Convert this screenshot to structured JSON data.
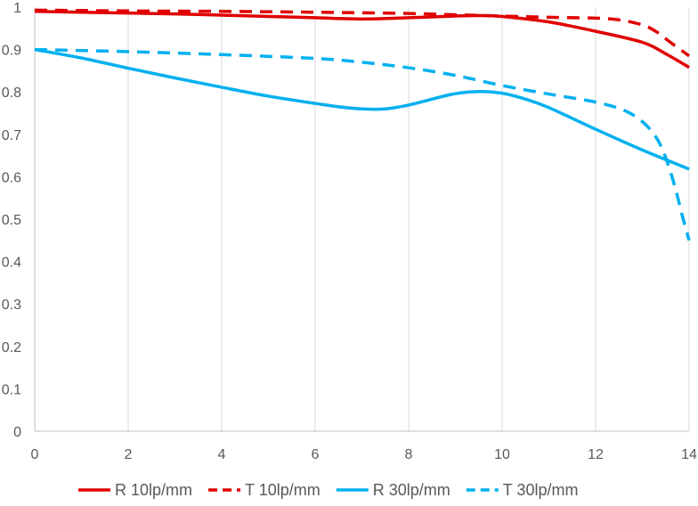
{
  "chart_data": {
    "type": "line",
    "title": "",
    "xlabel": "",
    "ylabel": "",
    "xlim": [
      0,
      14
    ],
    "ylim": [
      0,
      1
    ],
    "x_ticks": [
      0,
      2,
      4,
      6,
      8,
      10,
      12,
      14
    ],
    "y_ticks": [
      0,
      0.1,
      0.2,
      0.3,
      0.4,
      0.5,
      0.6,
      0.7,
      0.8,
      0.9,
      1
    ],
    "x_tick_labels": [
      "0",
      "2",
      "4",
      "6",
      "8",
      "10",
      "12",
      "14"
    ],
    "y_tick_labels": [
      "0",
      "0.1",
      "0.2",
      "0.3",
      "0.4",
      "0.5",
      "0.6",
      "0.7",
      "0.8",
      "0.9",
      "1"
    ],
    "grid": "vertical",
    "legend_position": "bottom",
    "series": [
      {
        "name": "R 10lp/mm",
        "color": "#e00000",
        "dash": "solid",
        "x": [
          0,
          1,
          2,
          3,
          4,
          5,
          6,
          7,
          8,
          9,
          9.5,
          10,
          11,
          12,
          13,
          13.5,
          14
        ],
        "y": [
          0.99,
          0.988,
          0.986,
          0.984,
          0.981,
          0.978,
          0.975,
          0.972,
          0.975,
          0.979,
          0.98,
          0.978,
          0.965,
          0.943,
          0.917,
          0.89,
          0.858
        ]
      },
      {
        "name": "T 10lp/mm",
        "color": "#e00000",
        "dash": "dashed",
        "x": [
          0,
          2,
          4,
          6,
          8,
          9,
          10,
          11,
          12,
          12.5,
          13,
          13.3,
          13.6,
          14
        ],
        "y": [
          0.993,
          0.991,
          0.99,
          0.988,
          0.985,
          0.982,
          0.979,
          0.976,
          0.974,
          0.97,
          0.958,
          0.942,
          0.917,
          0.885
        ]
      },
      {
        "name": "R 30lp/mm",
        "color": "#00b0f0",
        "dash": "solid",
        "x": [
          0,
          1,
          2,
          3,
          4,
          5,
          6,
          6.5,
          7,
          7.5,
          8,
          8.5,
          9,
          9.5,
          10,
          10.5,
          11,
          12,
          13,
          14
        ],
        "y": [
          0.9,
          0.88,
          0.856,
          0.833,
          0.811,
          0.79,
          0.773,
          0.765,
          0.76,
          0.76,
          0.769,
          0.783,
          0.796,
          0.801,
          0.797,
          0.783,
          0.763,
          0.712,
          0.663,
          0.618
        ]
      },
      {
        "name": "T 30lp/mm",
        "color": "#00b0f0",
        "dash": "dashed",
        "x": [
          0,
          2,
          4,
          6,
          7,
          8,
          9,
          10,
          11,
          12,
          12.6,
          13,
          13.3,
          13.5,
          13.7,
          13.85,
          14
        ],
        "y": [
          0.9,
          0.895,
          0.888,
          0.879,
          0.87,
          0.857,
          0.839,
          0.815,
          0.795,
          0.776,
          0.757,
          0.73,
          0.692,
          0.645,
          0.575,
          0.51,
          0.45
        ]
      }
    ]
  }
}
